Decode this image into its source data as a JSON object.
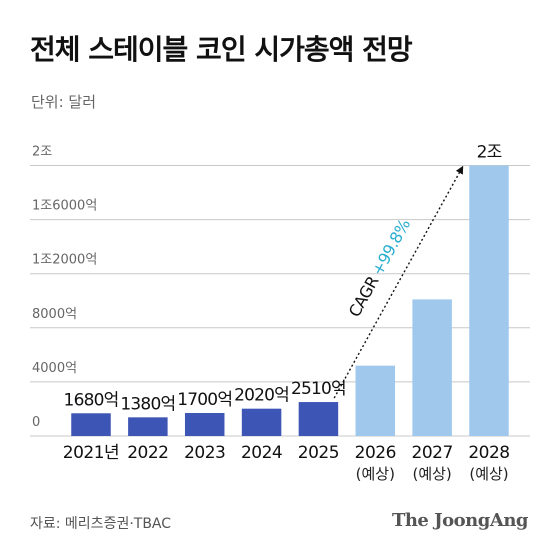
{
  "header": {
    "title": "전체 스테이블 코인 시가총액 전망",
    "unit": "단위: 달러"
  },
  "footer": {
    "source": "자료: 메리츠증권·TBAC",
    "brand": "The JoongAng"
  },
  "colors": {
    "actual": "#3d55b4",
    "forecast": "#9fc8ec",
    "grid": "#c8c8c8",
    "cagr": "#2aaed0"
  },
  "chart_data": {
    "type": "bar",
    "title": "전체 스테이블 코인 시가총액 전망",
    "ylabel": "단위: 달러",
    "ylim": [
      0,
      21000
    ],
    "yticks": [
      0,
      4000,
      8000,
      12000,
      16000,
      20000
    ],
    "ytick_labels": [
      "0",
      "4000억",
      "8000억",
      "1조2000억",
      "1조6000억",
      "2조"
    ],
    "categories": [
      "2021년",
      "2022",
      "2023",
      "2024",
      "2025",
      "2026",
      "2027",
      "2028"
    ],
    "category_sublabels": [
      "",
      "",
      "",
      "",
      "",
      "(예상)",
      "(예상)",
      "(예상)"
    ],
    "values": [
      1680,
      1380,
      1700,
      2020,
      2510,
      5200,
      10100,
      20000
    ],
    "value_labels": [
      "1680억",
      "1380억",
      "1700억",
      "2020억",
      "2510억",
      "",
      "",
      "2조"
    ],
    "forecast": [
      false,
      false,
      false,
      false,
      false,
      true,
      true,
      true
    ],
    "annotation": {
      "prefix": "CAGR",
      "text": "+99.8%",
      "from_category": "2025",
      "to_category": "2028"
    },
    "grid": true
  }
}
